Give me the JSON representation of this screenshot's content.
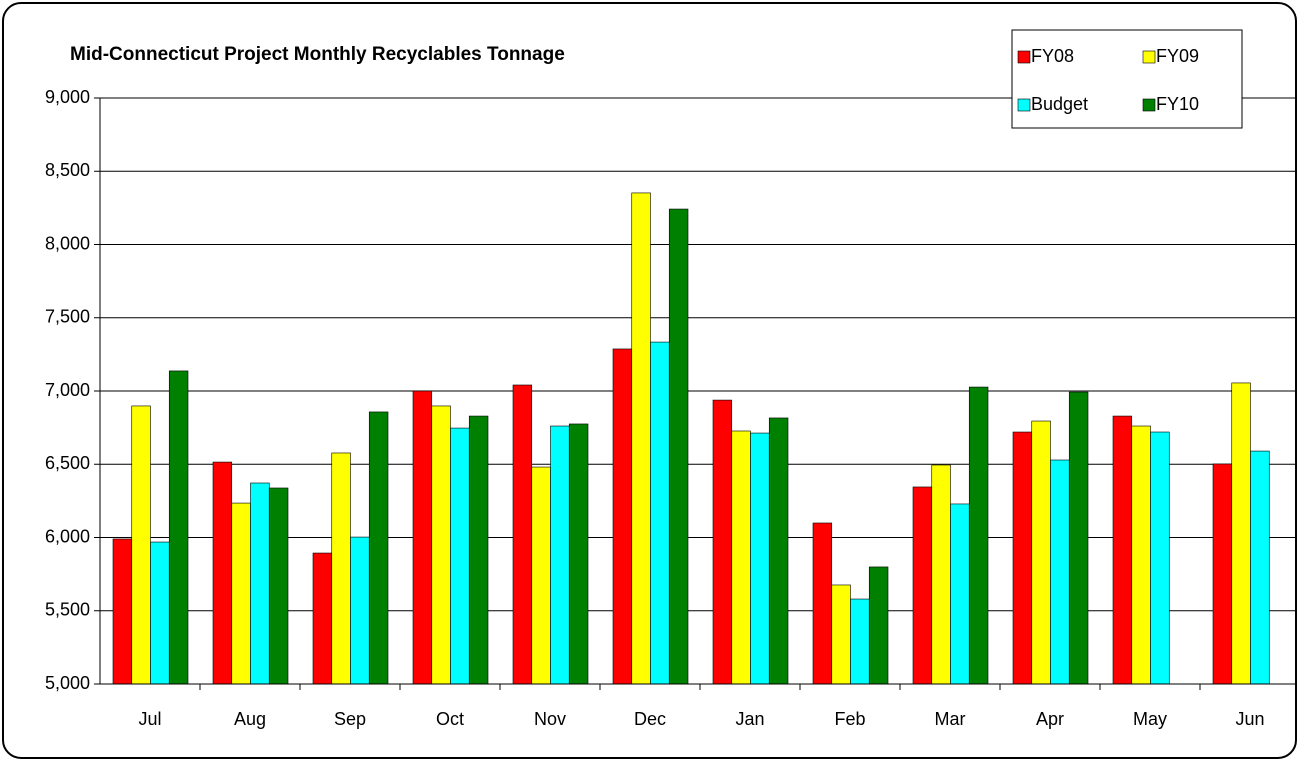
{
  "chart_data": {
    "type": "bar",
    "title": "Mid-Connecticut Project Monthly Recyclables Tonnage",
    "categories": [
      "Jul",
      "Aug",
      "Sep",
      "Oct",
      "Nov",
      "Dec",
      "Jan",
      "Feb",
      "Mar",
      "Apr",
      "May",
      "Jun"
    ],
    "series": [
      {
        "name": "FY08",
        "color": "#ff0000",
        "values": [
          5990,
          6515,
          5894,
          7000,
          7041,
          7287,
          6938,
          6099,
          6345,
          6720,
          6829,
          6502
        ]
      },
      {
        "name": "FY09",
        "color": "#ffff00",
        "values": [
          6898,
          6235,
          6577,
          6898,
          6481,
          8352,
          6727,
          5676,
          6495,
          6795,
          6761,
          7055
        ]
      },
      {
        "name": "Budget",
        "color": "#00ffff",
        "values": [
          5969,
          6372,
          6003,
          6747,
          6761,
          7334,
          6713,
          5580,
          6229,
          6529,
          6720,
          6590
        ]
      },
      {
        "name": "FY10",
        "color": "#008000",
        "values": [
          7137,
          6338,
          6857,
          6829,
          6775,
          8242,
          6816,
          5799,
          7027,
          6993,
          null,
          null
        ]
      }
    ],
    "ylim": [
      5000,
      9000
    ],
    "yticks": [
      {
        "value": 5000,
        "label": "5,000"
      },
      {
        "value": 5500,
        "label": "5,500"
      },
      {
        "value": 6000,
        "label": "6,000"
      },
      {
        "value": 6500,
        "label": "6,500"
      },
      {
        "value": 7000,
        "label": "7,000"
      },
      {
        "value": 7500,
        "label": "7,500"
      },
      {
        "value": 8000,
        "label": "8,000"
      },
      {
        "value": 8500,
        "label": "8,500"
      },
      {
        "value": 9000,
        "label": "9,000"
      }
    ],
    "grid": true,
    "legend": "top-right"
  }
}
